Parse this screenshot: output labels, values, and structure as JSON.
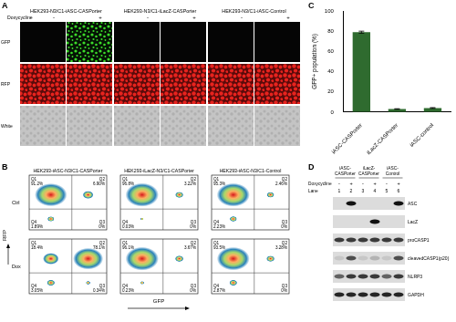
{
  "panel_labels": [
    "A",
    "B",
    "C",
    "D"
  ],
  "panel_a": {
    "columns": [
      "HEK293-N3/C1-iASC-CASPorter",
      "HEK293-N3/C1-iLacZ-CASPorter",
      "HEK293-N3/C1-iASC-Control"
    ],
    "doxycycline_label": "Doxycycline",
    "doxycycline": [
      "-",
      "+",
      "-",
      "+",
      "-",
      "+"
    ],
    "rows": [
      "GFP",
      "RFP",
      "White"
    ],
    "gfp_positive": [
      false,
      true,
      false,
      false,
      false,
      false
    ]
  },
  "panel_b": {
    "columns": [
      "HEK293-iASC-N3/C1-CASPorter",
      "HEK293-iLacZ-N3/C1-CASPorter",
      "HEK293-iASC-N3/C1-Control"
    ],
    "rows": [
      "Ctrl",
      "Dox"
    ],
    "x_label": "GFP",
    "y_label": "RFP",
    "quadrants": [
      "Q1",
      "Q2",
      "Q3",
      "Q4"
    ],
    "plots": [
      [
        {
          "values": [
            91.2,
            6.9,
            0,
            1.89
          ],
          "labels": [
            "91.2%",
            "6.90%",
            "0%",
            "1.89%"
          ]
        },
        {
          "values": [
            96.8,
            3.22,
            0,
            0.03
          ],
          "labels": [
            "96.8%",
            "3.22%",
            "0%",
            "0.03%"
          ]
        },
        {
          "values": [
            95.3,
            2.46,
            0,
            2.23
          ],
          "labels": [
            "95.3%",
            "2.46%",
            "0%",
            "2.23%"
          ]
        }
      ],
      [
        {
          "values": [
            18.4,
            78.1,
            0.34,
            3.05
          ],
          "labels": [
            "18.4%",
            "78.1%",
            "0.34%",
            "3.05%"
          ]
        },
        {
          "values": [
            96.1,
            3.67,
            0,
            0.23
          ],
          "labels": [
            "96.1%",
            "3.67%",
            "0%",
            "0.23%"
          ]
        },
        {
          "values": [
            93.5,
            3.28,
            0,
            2.87
          ],
          "labels": [
            "93.5%",
            "3.28%",
            "0%",
            "2.87%"
          ]
        }
      ]
    ]
  },
  "chart_data": {
    "type": "bar",
    "categories": [
      "iASC-CASPorter",
      "iLacZ-CASPorter",
      "iASC-control"
    ],
    "values": [
      79,
      3,
      4
    ],
    "errors": [
      1,
      0.3,
      0.4
    ],
    "color": "#2f6b2f",
    "y_label": "GFP+ population (%)",
    "ylim": [
      0,
      100
    ],
    "yticks": [
      0,
      20,
      40,
      60,
      80,
      100
    ],
    "grid": false
  },
  "panel_d": {
    "groups": [
      "iASC-CASPorter",
      "iLacZ-CASPorter",
      "iASC-Control"
    ],
    "doxycycline_label": "Doxycycline",
    "doxycycline": [
      "-",
      "+",
      "-",
      "+",
      "-",
      "+"
    ],
    "lane_label": "Lane",
    "lanes": [
      1,
      2,
      3,
      4,
      5,
      6
    ],
    "rows": [
      {
        "name": "ASC",
        "intensity": [
          0,
          1,
          0,
          0,
          0,
          1
        ]
      },
      {
        "name": "LacZ",
        "intensity": [
          0,
          0,
          0,
          1,
          0,
          0
        ]
      },
      {
        "name": "proCASP1",
        "intensity": [
          0.8,
          0.8,
          0.8,
          0.8,
          0.8,
          0.8
        ]
      },
      {
        "name": "cleavedCASP1(p20)",
        "intensity": [
          0.1,
          0.7,
          0.1,
          0.2,
          0.1,
          0.7
        ]
      },
      {
        "name": "NLRP3",
        "intensity": [
          0.6,
          0.8,
          0.8,
          0.8,
          0.6,
          0.8
        ]
      },
      {
        "name": "GAPDH",
        "intensity": [
          0.9,
          0.9,
          0.9,
          0.9,
          0.9,
          0.9
        ]
      }
    ]
  }
}
